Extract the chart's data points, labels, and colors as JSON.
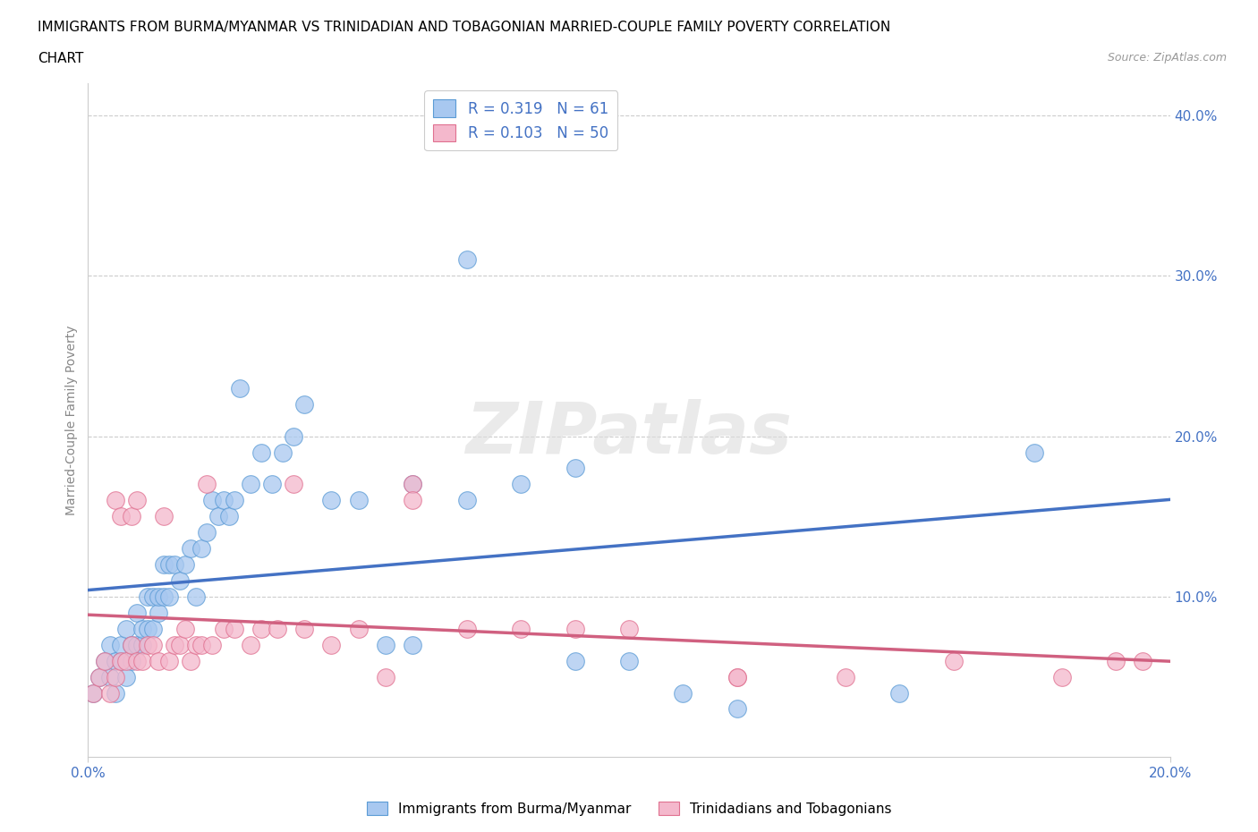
{
  "title_line1": "IMMIGRANTS FROM BURMA/MYANMAR VS TRINIDADIAN AND TOBAGONIAN MARRIED-COUPLE FAMILY POVERTY CORRELATION",
  "title_line2": "CHART",
  "source_text": "Source: ZipAtlas.com",
  "ylabel": "Married-Couple Family Poverty",
  "xlim": [
    0.0,
    0.2
  ],
  "ylim": [
    0.0,
    0.42
  ],
  "xticks": [
    0.0,
    0.2
  ],
  "yticks": [
    0.1,
    0.2,
    0.3,
    0.4
  ],
  "xticklabels": [
    "0.0%",
    "20.0%"
  ],
  "yticklabels": [
    "10.0%",
    "20.0%",
    "30.0%",
    "40.0%"
  ],
  "watermark": "ZIPatlas",
  "blue_fill": "#a8c8f0",
  "blue_edge": "#5b9bd5",
  "pink_fill": "#f4b8cc",
  "pink_edge": "#e07090",
  "blue_line_color": "#4472c4",
  "pink_line_color": "#d06080",
  "legend_label_blue": "R = 0.319   N = 61",
  "legend_label_pink": "R = 0.103   N = 50",
  "tick_color": "#4472c4",
  "ylabel_color": "#888888",
  "blue_scatter_x": [
    0.001,
    0.002,
    0.003,
    0.004,
    0.004,
    0.005,
    0.005,
    0.006,
    0.006,
    0.007,
    0.007,
    0.008,
    0.008,
    0.009,
    0.009,
    0.01,
    0.01,
    0.011,
    0.011,
    0.012,
    0.012,
    0.013,
    0.013,
    0.014,
    0.014,
    0.015,
    0.015,
    0.016,
    0.017,
    0.018,
    0.019,
    0.02,
    0.021,
    0.022,
    0.023,
    0.024,
    0.025,
    0.026,
    0.027,
    0.028,
    0.03,
    0.032,
    0.034,
    0.036,
    0.038,
    0.04,
    0.045,
    0.05,
    0.055,
    0.06,
    0.07,
    0.08,
    0.09,
    0.1,
    0.11,
    0.12,
    0.06,
    0.07,
    0.09,
    0.15,
    0.175
  ],
  "blue_scatter_y": [
    0.04,
    0.05,
    0.06,
    0.05,
    0.07,
    0.04,
    0.06,
    0.06,
    0.07,
    0.05,
    0.08,
    0.06,
    0.07,
    0.07,
    0.09,
    0.07,
    0.08,
    0.08,
    0.1,
    0.08,
    0.1,
    0.09,
    0.1,
    0.1,
    0.12,
    0.1,
    0.12,
    0.12,
    0.11,
    0.12,
    0.13,
    0.1,
    0.13,
    0.14,
    0.16,
    0.15,
    0.16,
    0.15,
    0.16,
    0.23,
    0.17,
    0.19,
    0.17,
    0.19,
    0.2,
    0.22,
    0.16,
    0.16,
    0.07,
    0.07,
    0.16,
    0.17,
    0.06,
    0.06,
    0.04,
    0.03,
    0.17,
    0.31,
    0.18,
    0.04,
    0.19
  ],
  "pink_scatter_x": [
    0.001,
    0.002,
    0.003,
    0.004,
    0.005,
    0.005,
    0.006,
    0.006,
    0.007,
    0.008,
    0.008,
    0.009,
    0.009,
    0.01,
    0.011,
    0.012,
    0.013,
    0.014,
    0.015,
    0.016,
    0.017,
    0.018,
    0.019,
    0.02,
    0.021,
    0.022,
    0.023,
    0.025,
    0.027,
    0.03,
    0.032,
    0.035,
    0.038,
    0.04,
    0.045,
    0.05,
    0.055,
    0.06,
    0.07,
    0.08,
    0.09,
    0.1,
    0.12,
    0.14,
    0.16,
    0.18,
    0.19,
    0.195,
    0.06,
    0.12
  ],
  "pink_scatter_y": [
    0.04,
    0.05,
    0.06,
    0.04,
    0.05,
    0.16,
    0.06,
    0.15,
    0.06,
    0.07,
    0.15,
    0.06,
    0.16,
    0.06,
    0.07,
    0.07,
    0.06,
    0.15,
    0.06,
    0.07,
    0.07,
    0.08,
    0.06,
    0.07,
    0.07,
    0.17,
    0.07,
    0.08,
    0.08,
    0.07,
    0.08,
    0.08,
    0.17,
    0.08,
    0.07,
    0.08,
    0.05,
    0.17,
    0.08,
    0.08,
    0.08,
    0.08,
    0.05,
    0.05,
    0.06,
    0.05,
    0.06,
    0.06,
    0.16,
    0.05
  ]
}
